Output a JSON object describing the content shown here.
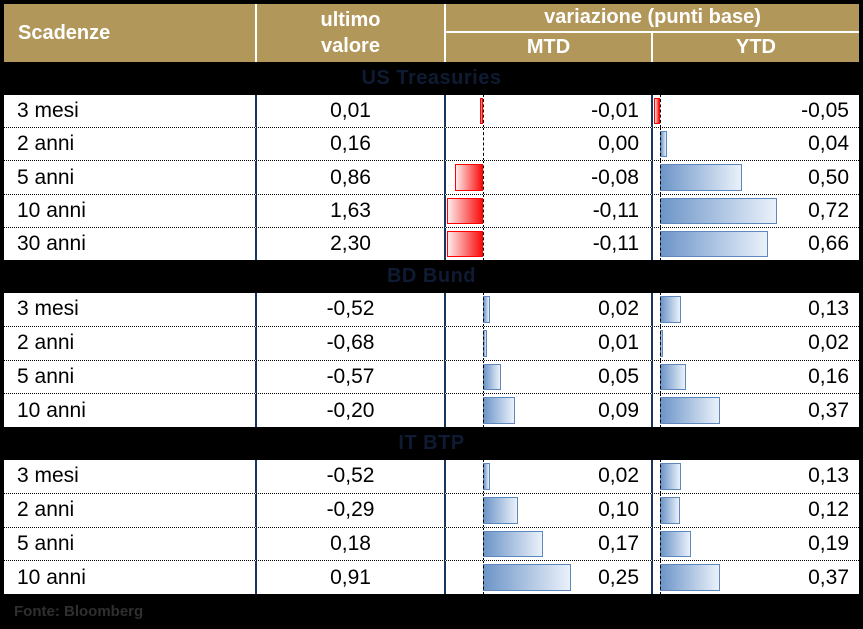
{
  "header": {
    "scadenze": "Scadenze",
    "ultimo_line1": "ultimo",
    "ultimo_line2": "valore",
    "variazione": "variazione (punti base)",
    "mtd": "MTD",
    "ytd": "YTD"
  },
  "footer": {
    "source": "Fonte: Bloomberg"
  },
  "colors": {
    "header_bg": "#B2975A",
    "header_text": "#FFFFFF",
    "section_band_bg": "#000000",
    "section_title_text": "#0E1B33",
    "column_divider": "#17375E",
    "bar_negative": "#FF0000",
    "bar_positive": "#638EC6",
    "row_bg": "#FFFFFF",
    "row_text": "#000000"
  },
  "chart_data": {
    "type": "table",
    "title": "variazione (punti base)",
    "columns": [
      "Scadenze",
      "ultimo valore",
      "MTD",
      "YTD"
    ],
    "bar_encoding": {
      "columns_with_bars": [
        "MTD",
        "YTD"
      ],
      "positive_color": "#638EC6",
      "negative_color": "#FF0000",
      "units": "punti base",
      "zero_axis": "dashed"
    },
    "sections": [
      {
        "title": "US Treasuries",
        "rows": [
          {
            "maturity": "3 mesi",
            "last": "0,01",
            "mtd": "-0,01",
            "ytd": "-0,05"
          },
          {
            "maturity": "2 anni",
            "last": "0,16",
            "mtd": "0,00",
            "ytd": "0,04"
          },
          {
            "maturity": "5 anni",
            "last": "0,86",
            "mtd": "-0,08",
            "ytd": "0,50"
          },
          {
            "maturity": "10 anni",
            "last": "1,63",
            "mtd": "-0,11",
            "ytd": "0,72"
          },
          {
            "maturity": "30 anni",
            "last": "2,30",
            "mtd": "-0,11",
            "ytd": "0,66"
          }
        ]
      },
      {
        "title": "BD Bund",
        "rows": [
          {
            "maturity": "3 mesi",
            "last": "-0,52",
            "mtd": "0,02",
            "ytd": "0,13"
          },
          {
            "maturity": "2 anni",
            "last": "-0,68",
            "mtd": "0,01",
            "ytd": "0,02"
          },
          {
            "maturity": "5 anni",
            "last": "-0,57",
            "mtd": "0,05",
            "ytd": "0,16"
          },
          {
            "maturity": "10 anni",
            "last": "-0,20",
            "mtd": "0,09",
            "ytd": "0,37"
          }
        ]
      },
      {
        "title": "IT BTP",
        "rows": [
          {
            "maturity": "3 mesi",
            "last": "-0,52",
            "mtd": "0,02",
            "ytd": "0,13"
          },
          {
            "maturity": "2 anni",
            "last": "-0,29",
            "mtd": "0,10",
            "ytd": "0,12"
          },
          {
            "maturity": "5 anni",
            "last": "0,18",
            "mtd": "0,17",
            "ytd": "0,19"
          },
          {
            "maturity": "10 anni",
            "last": "0,91",
            "mtd": "0,25",
            "ytd": "0,37"
          }
        ]
      }
    ]
  }
}
